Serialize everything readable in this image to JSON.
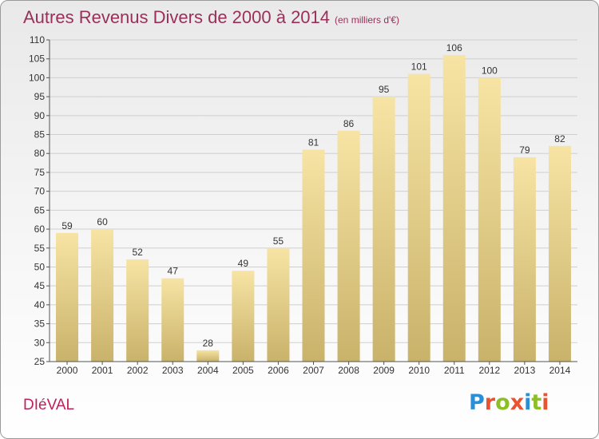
{
  "title": "Autres Revenus Divers de 2000 à 2014",
  "unit": "(en milliers d'€)",
  "commune": "DIéVAL",
  "brand": {
    "text": "Proxiti",
    "colors": [
      "#2a8fd6",
      "#e8542f",
      "#8cbf26",
      "#e8542f",
      "#2a8fd6",
      "#8cbf26",
      "#e8542f"
    ]
  },
  "colors": {
    "title": "#9b2f5a",
    "commune": "#c01f5a",
    "bar_top": "#f7e4a4",
    "bar_bottom": "#c9b26a",
    "axis": "#555555",
    "grid": "#cfcfcf"
  },
  "chart_data": {
    "type": "bar",
    "categories": [
      "2000",
      "2001",
      "2002",
      "2003",
      "2004",
      "2005",
      "2006",
      "2007",
      "2008",
      "2009",
      "2010",
      "2011",
      "2012",
      "2013",
      "2014"
    ],
    "values": [
      59,
      60,
      52,
      47,
      28,
      49,
      55,
      81,
      86,
      95,
      101,
      106,
      100,
      79,
      82
    ],
    "ylim": [
      25,
      110
    ],
    "yticks": [
      25,
      30,
      35,
      40,
      45,
      50,
      55,
      60,
      65,
      70,
      75,
      80,
      85,
      90,
      95,
      100,
      105,
      110
    ],
    "grid": true
  }
}
